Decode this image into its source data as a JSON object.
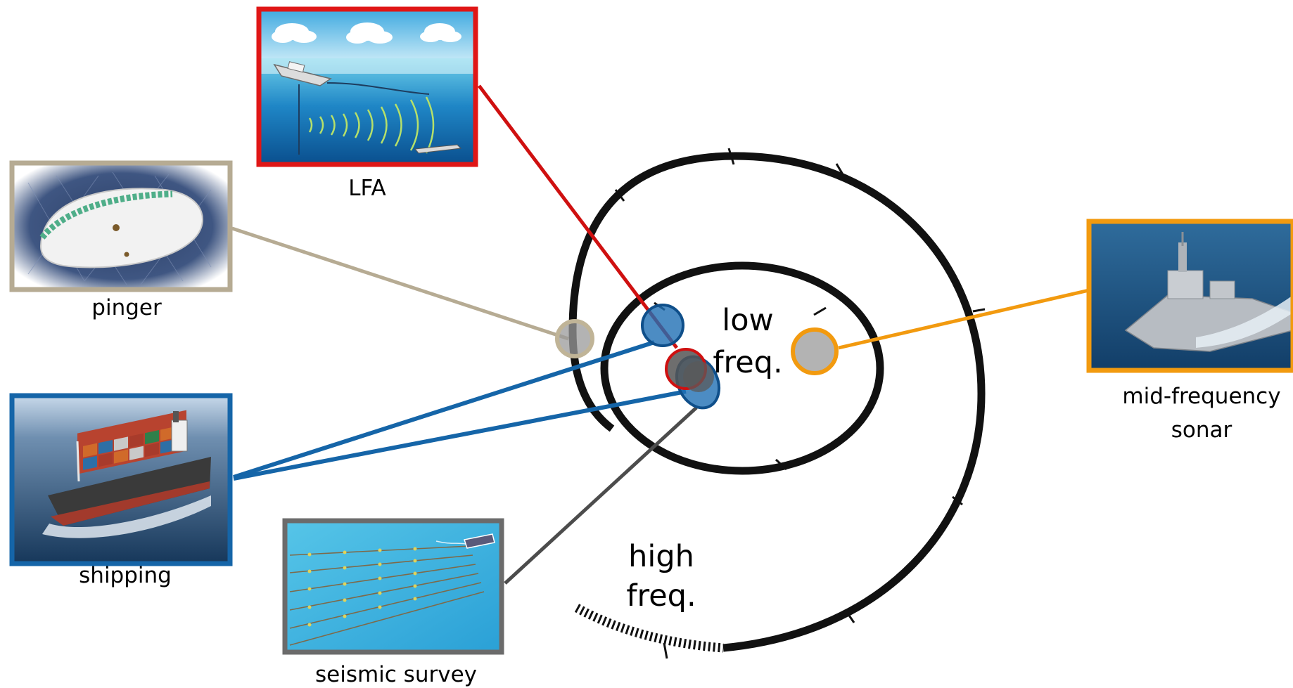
{
  "diagram": {
    "center_label": {
      "line1": "low",
      "line2": "freq."
    },
    "outer_label": {
      "line1": "high",
      "line2": "freq."
    },
    "sources": [
      {
        "id": "lfa",
        "label": "LFA",
        "color": "#d40000",
        "icon": "sonar-array-illustration"
      },
      {
        "id": "pinger",
        "label": "pinger",
        "color": "#b6ab93",
        "icon": "acoustic-pinger-photo"
      },
      {
        "id": "shipping",
        "label": "shipping",
        "color": "#1565a8",
        "icon": "cargo-ship-photo"
      },
      {
        "id": "seismic",
        "label": "seismic survey",
        "color": "#5f5f5f",
        "icon": "seismic-survey-photo"
      },
      {
        "id": "midfreq",
        "label": "mid-frequency",
        "label2": "sonar",
        "color": "#f29a0f",
        "icon": "warship-photo"
      }
    ]
  }
}
